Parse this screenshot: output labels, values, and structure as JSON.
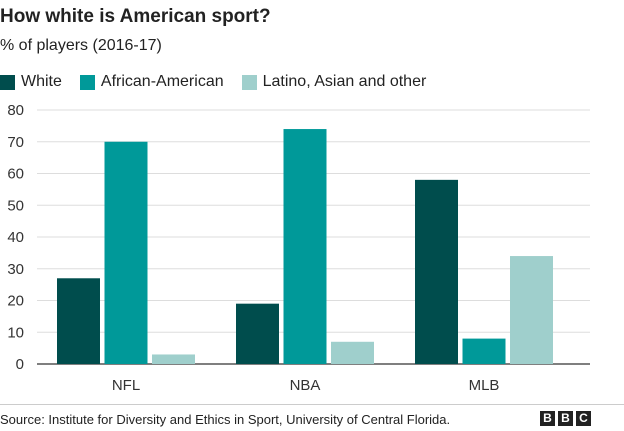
{
  "colors": {
    "white": "#004d4d",
    "african_american": "#009999",
    "other": "#9fcfcc"
  },
  "chart_data": {
    "type": "bar",
    "title": "How white is American sport?",
    "subtitle": "% of players (2016-17)",
    "categories": [
      "NFL",
      "NBA",
      "MLB"
    ],
    "series": [
      {
        "name": "White",
        "values": [
          27,
          19,
          58
        ],
        "color": "#004d4d"
      },
      {
        "name": "African-American",
        "values": [
          70,
          74,
          8
        ],
        "color": "#009999"
      },
      {
        "name": "Latino, Asian and other",
        "values": [
          3,
          7,
          34
        ],
        "color": "#9fcfcc"
      }
    ],
    "ylim": [
      0,
      80
    ],
    "yticks": [
      0,
      10,
      20,
      30,
      40,
      50,
      60,
      70,
      80
    ],
    "grid": true,
    "legend": "top-left",
    "source": "Source: Institute for Diversity and Ethics in Sport, University of Central Florida."
  },
  "logo_letters": [
    "B",
    "B",
    "C"
  ]
}
